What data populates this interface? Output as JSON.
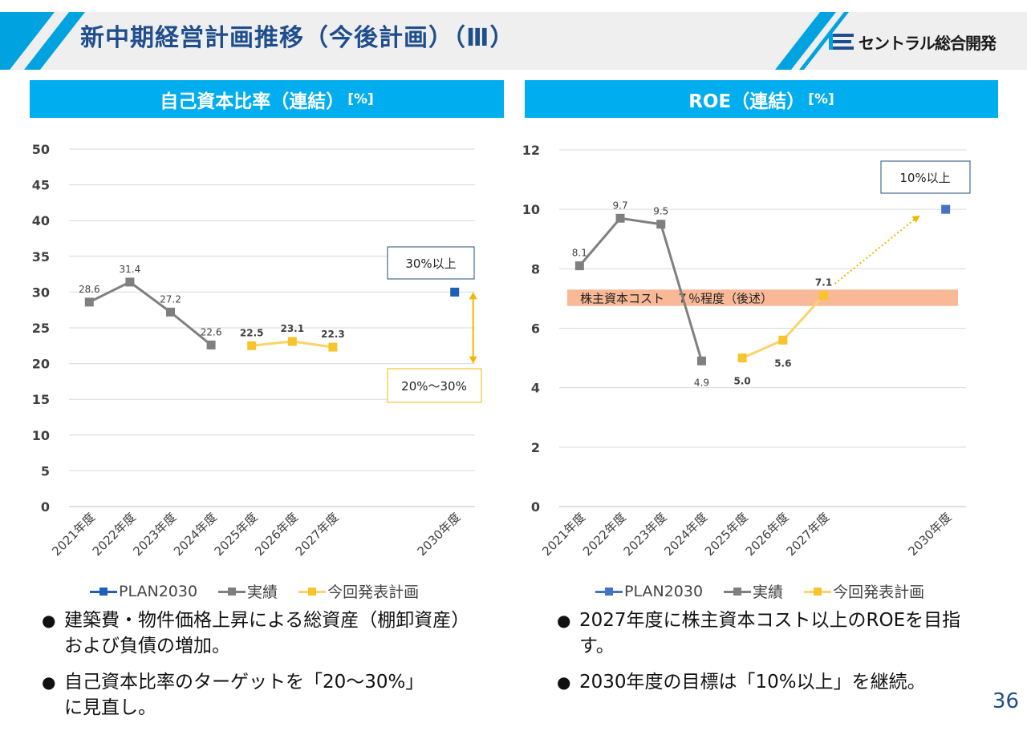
{
  "header": {
    "title": "新中期経営計画推移（今後計画）（Ⅲ）",
    "logo_text": "セントラル総合開発",
    "accent_color": "#00a3e0"
  },
  "left_panel": {
    "title": "自己資本比率（連結）",
    "unit": "[%]",
    "legend": [
      "PLAN2030",
      "実績",
      "今回発表計画"
    ],
    "bullets": [
      "建築費・物件価格上昇による総資産（棚卸資産）および負債の増加。",
      "自己資本比率のターゲットを「20〜30%」に見直し。"
    ]
  },
  "right_panel": {
    "title": "ROE（連結）",
    "unit": "[%]",
    "legend": [
      "PLAN2030",
      "実績",
      "今回発表計画"
    ],
    "bullets": [
      "2027年度に株主資本コスト以上のROEを目指す。",
      "2030年度の目標は「10%以上」を継続。"
    ]
  },
  "page_number": "36",
  "chart_data": [
    {
      "type": "line",
      "title": "自己資本比率（連結）[%]",
      "categories": [
        "2021年度",
        "2022年度",
        "2023年度",
        "2024年度",
        "2025年度",
        "2026年度",
        "2027年度",
        "",
        "",
        "2030年度"
      ],
      "ylim": [
        0,
        50
      ],
      "yticks": [
        0,
        5,
        10,
        15,
        20,
        25,
        30,
        35,
        40,
        45,
        50
      ],
      "grid": true,
      "legend_position": "bottom",
      "series": [
        {
          "name": "PLAN2030",
          "color": "#1f5fb4",
          "points": [
            [
              "2030年度",
              30
            ]
          ],
          "labels": [
            null
          ]
        },
        {
          "name": "実績",
          "color": "#7f7f7f",
          "points": [
            [
              "2021年度",
              28.6
            ],
            [
              "2022年度",
              31.4
            ],
            [
              "2023年度",
              27.2
            ],
            [
              "2024年度",
              22.6
            ]
          ],
          "labels": [
            "28.6",
            "31.4",
            "27.2",
            "22.6"
          ],
          "label_bold": false
        },
        {
          "name": "今回発表計画",
          "color": "#f7c52b",
          "line_color": "#f9d46a",
          "points": [
            [
              "2025年度",
              22.5
            ],
            [
              "2026年度",
              23.1
            ],
            [
              "2027年度",
              22.3
            ]
          ],
          "labels": [
            "22.5",
            "23.1",
            "22.3"
          ],
          "label_bold": true
        }
      ],
      "annotations": [
        {
          "text": "30%以上",
          "border": "#1f4e79"
        },
        {
          "text": "20%〜30%",
          "border": "#f0b800"
        }
      ],
      "range_arrow": {
        "from": 30,
        "to": 20,
        "color": "#f0b800"
      }
    },
    {
      "type": "line",
      "title": "ROE（連結）[%]",
      "categories": [
        "2021年度",
        "2022年度",
        "2023年度",
        "2024年度",
        "2025年度",
        "2026年度",
        "2027年度",
        "",
        "",
        "2030年度"
      ],
      "ylim": [
        0,
        12
      ],
      "yticks": [
        0,
        2,
        4,
        6,
        8,
        10,
        12
      ],
      "grid": true,
      "legend_position": "bottom",
      "series": [
        {
          "name": "PLAN2030",
          "color": "#4472c4",
          "points": [
            [
              "2030年度",
              10
            ]
          ],
          "labels": [
            null
          ]
        },
        {
          "name": "実績",
          "color": "#7f7f7f",
          "points": [
            [
              "2021年度",
              8.1
            ],
            [
              "2022年度",
              9.7
            ],
            [
              "2023年度",
              9.5
            ],
            [
              "2024年度",
              4.9
            ]
          ],
          "labels": [
            "8.1",
            "9.7",
            "9.5",
            "4.9"
          ],
          "label_bold": false
        },
        {
          "name": "今回発表計画",
          "color": "#f7c52b",
          "line_color": "#f9d46a",
          "points": [
            [
              "2025年度",
              5.0
            ],
            [
              "2026年度",
              5.6
            ],
            [
              "2027年度",
              7.1
            ]
          ],
          "labels": [
            "5.0",
            "5.6",
            "7.1"
          ],
          "label_bold": true
        }
      ],
      "band": {
        "from": 6.75,
        "to": 7.3,
        "color": "#f9b896",
        "label": "株主資本コスト　７％程度（後述）"
      },
      "annotations": [
        {
          "text": "10%以上",
          "border": "#1f4e79"
        }
      ],
      "trend_arrow": {
        "from": [
          "2027年度",
          7.5
        ],
        "to": [
          "2030年度",
          9.95
        ],
        "color": "#f0b800"
      }
    }
  ]
}
